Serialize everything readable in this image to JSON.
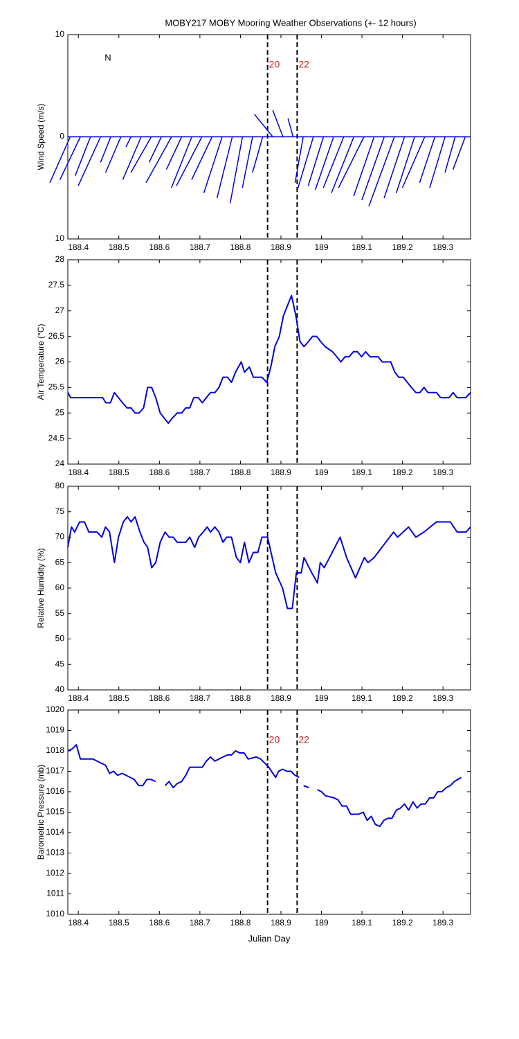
{
  "chart_data": [
    {
      "type": "stick",
      "title": "MOBY217 MOBY Mooring Weather Observations (+- 12 hours)",
      "ylabel": "Wind Speed (m/s)",
      "north_label": "N",
      "color": "#0000dd",
      "xlim": [
        188.374,
        189.368
      ],
      "xticks": [
        188.4,
        188.5,
        188.6,
        188.7,
        188.8,
        188.9,
        189,
        189.1,
        189.2,
        189.3
      ],
      "ylim": [
        -10,
        10
      ],
      "yticks": [
        {
          "value": -10,
          "label": "10"
        },
        0,
        10
      ],
      "vlines": [
        {
          "value": 188.867,
          "label": "20"
        },
        {
          "value": 188.94,
          "label": "22"
        }
      ],
      "x": [
        188.38,
        188.405,
        188.43,
        188.455,
        188.48,
        188.505,
        188.53,
        188.555,
        188.58,
        188.605,
        188.63,
        188.655,
        188.68,
        188.705,
        188.73,
        188.755,
        188.78,
        188.805,
        188.83,
        188.855,
        188.88,
        188.905,
        188.93,
        188.955,
        188.98,
        189.005,
        189.03,
        189.055,
        189.08,
        189.105,
        189.13,
        189.155,
        189.18,
        189.205,
        189.23,
        189.255,
        189.28,
        189.305,
        189.33,
        189.355
      ],
      "u": [
        -2,
        -2,
        -1.5,
        -2.2,
        -1,
        -1.5,
        -0.5,
        -1.8,
        -2,
        -1.2,
        -2.5,
        -1.5,
        -2,
        -2.5,
        -2,
        -1.8,
        -1.5,
        -1.2,
        -1,
        -1,
        -1.8,
        -1,
        -0.5,
        -0.8,
        -1.5,
        -1.5,
        -1.8,
        -2,
        -2.2,
        -2.5,
        -2,
        -2.2,
        -2.5,
        -2,
        -1.8,
        -2.2,
        -1.5,
        -1.5,
        -1,
        -1.2
      ],
      "v": [
        -4.5,
        -4.2,
        -3.8,
        -4.8,
        -2.5,
        -3.5,
        -1,
        -4.2,
        -3.5,
        -2.5,
        -4.5,
        -3.2,
        -5,
        -4.8,
        -4.2,
        -5.5,
        -6,
        -6.5,
        -5,
        -3.5,
        2.2,
        2.6,
        1.8,
        -4.5,
        -5,
        -4.8,
        -5.2,
        -5,
        -5.5,
        -5,
        -5.8,
        -6.2,
        -6.8,
        -6,
        -5.5,
        -5,
        -4.5,
        -5,
        -3.5,
        -3.2
      ]
    },
    {
      "type": "line",
      "ylabel": "Air Temperature (°C)",
      "color": "#0000dd",
      "xlim": [
        188.374,
        189.368
      ],
      "xticks": [
        188.4,
        188.5,
        188.6,
        188.7,
        188.8,
        188.9,
        189,
        189.1,
        189.2,
        189.3
      ],
      "ylim": [
        24,
        28
      ],
      "yticks": [
        24,
        24.5,
        25,
        25.5,
        26,
        26.5,
        27,
        27.5,
        28
      ],
      "vlines": [
        188.867,
        188.94
      ],
      "x": [
        188.374,
        188.381,
        188.46,
        188.468,
        188.479,
        188.489,
        188.499,
        188.509,
        188.52,
        188.53,
        188.54,
        188.55,
        188.561,
        188.571,
        188.581,
        188.591,
        188.602,
        188.612,
        188.622,
        188.632,
        188.644,
        188.655,
        188.665,
        188.675,
        188.685,
        188.696,
        188.706,
        188.716,
        188.726,
        188.737,
        188.747,
        188.757,
        188.768,
        188.778,
        188.788,
        188.802,
        188.81,
        188.822,
        188.832,
        188.853,
        188.865,
        188.875,
        188.885,
        188.896,
        188.906,
        188.916,
        188.926,
        188.937,
        188.947,
        188.957,
        188.968,
        188.978,
        188.988,
        188.998,
        189.009,
        189.027,
        189.038,
        189.048,
        189.058,
        189.068,
        189.079,
        189.089,
        189.099,
        189.109,
        189.12,
        189.14,
        189.15,
        189.171,
        189.181,
        189.191,
        189.202,
        189.212,
        189.222,
        189.233,
        189.243,
        189.253,
        189.263,
        189.284,
        189.294,
        189.315,
        189.325,
        189.335,
        189.356,
        189.368
      ],
      "values": [
        25.4,
        25.3,
        25.3,
        25.2,
        25.2,
        25.4,
        25.3,
        25.2,
        25.1,
        25.1,
        25.0,
        25.0,
        25.1,
        25.5,
        25.5,
        25.3,
        25.0,
        24.9,
        24.8,
        24.9,
        25.0,
        25.0,
        25.1,
        25.1,
        25.3,
        25.3,
        25.2,
        25.3,
        25.4,
        25.4,
        25.5,
        25.7,
        25.7,
        25.6,
        25.8,
        26.0,
        25.8,
        25.9,
        25.7,
        25.7,
        25.6,
        25.9,
        26.3,
        26.5,
        26.9,
        27.1,
        27.3,
        26.9,
        26.4,
        26.3,
        26.4,
        26.5,
        26.5,
        26.4,
        26.3,
        26.2,
        26.1,
        26.0,
        26.1,
        26.1,
        26.2,
        26.2,
        26.1,
        26.2,
        26.1,
        26.1,
        26.0,
        26.0,
        25.8,
        25.7,
        25.7,
        25.6,
        25.5,
        25.4,
        25.4,
        25.5,
        25.4,
        25.4,
        25.3,
        25.3,
        25.4,
        25.3,
        25.3,
        25.4
      ]
    },
    {
      "type": "line",
      "ylabel": "Relative Humidity (%)",
      "color": "#0000dd",
      "xlim": [
        188.374,
        189.368
      ],
      "xticks": [
        188.4,
        188.5,
        188.6,
        188.7,
        188.8,
        188.9,
        189,
        189.1,
        189.2,
        189.3
      ],
      "ylim": [
        40,
        80
      ],
      "yticks": [
        40,
        45,
        50,
        55,
        60,
        65,
        70,
        75,
        80
      ],
      "vlines": [
        188.867,
        188.94
      ],
      "x": [
        188.374,
        188.383,
        188.391,
        188.403,
        188.415,
        188.426,
        188.446,
        188.458,
        188.467,
        188.477,
        188.489,
        188.499,
        188.511,
        188.521,
        188.53,
        188.54,
        188.552,
        188.562,
        188.571,
        188.581,
        188.591,
        188.602,
        188.614,
        188.624,
        188.634,
        188.644,
        188.665,
        188.675,
        188.687,
        188.697,
        188.708,
        188.718,
        188.726,
        188.737,
        188.747,
        188.757,
        188.766,
        188.778,
        188.79,
        188.8,
        188.81,
        188.821,
        188.832,
        188.843,
        188.853,
        188.867,
        188.887,
        188.904,
        188.916,
        188.928,
        188.938,
        188.95,
        188.957,
        188.976,
        188.99,
        188.997,
        189.007,
        189.046,
        189.062,
        189.084,
        189.106,
        189.115,
        189.13,
        189.178,
        189.188,
        189.215,
        189.233,
        189.253,
        189.284,
        189.318,
        189.335,
        189.357,
        189.368
      ],
      "values": [
        68,
        72,
        71,
        73,
        73,
        71,
        71,
        70,
        72,
        71,
        65,
        70,
        73,
        74,
        73,
        74,
        71,
        69,
        68,
        64,
        65,
        69,
        71,
        70,
        70,
        69,
        69,
        70,
        68,
        70,
        71,
        72,
        71,
        72,
        71,
        69,
        70,
        70,
        66,
        65,
        69,
        65,
        67,
        67,
        70,
        70,
        63,
        60,
        56,
        56,
        63,
        63,
        66,
        63,
        61,
        65,
        64,
        70,
        66,
        62,
        66,
        65,
        66,
        71,
        70,
        72,
        70,
        71,
        73,
        73,
        71,
        71,
        72
      ]
    },
    {
      "type": "line",
      "ylabel": "Barometric Pressure (mb)",
      "xlabel": "Julian Day",
      "color": "#0000dd",
      "xlim": [
        188.374,
        189.368
      ],
      "xticks": [
        188.4,
        188.5,
        188.6,
        188.7,
        188.8,
        188.9,
        189,
        189.1,
        189.2,
        189.3
      ],
      "ylim": [
        1010,
        1020
      ],
      "yticks": [
        1010,
        1011,
        1012,
        1013,
        1014,
        1015,
        1016,
        1017,
        1018,
        1019,
        1020
      ],
      "vlines": [
        {
          "value": 188.867,
          "label": "20"
        },
        {
          "value": 188.94,
          "label": "22"
        }
      ],
      "x": [
        188.374,
        188.385,
        188.395,
        188.405,
        188.436,
        188.446,
        188.456,
        188.467,
        188.477,
        188.487,
        188.497,
        188.508,
        188.518,
        188.528,
        188.538,
        188.549,
        188.559,
        188.569,
        188.579,
        188.591,
        188.602,
        188.614,
        188.624,
        188.634,
        188.644,
        188.655,
        188.665,
        188.675,
        188.706,
        188.716,
        188.726,
        188.737,
        188.747,
        188.757,
        188.768,
        188.778,
        188.788,
        188.798,
        188.809,
        188.819,
        188.839,
        188.85,
        188.87,
        188.88,
        188.887,
        188.894,
        188.904,
        188.915,
        188.925,
        188.935,
        188.945,
        188.95,
        188.956,
        188.969,
        188.98,
        188.99,
        189.0,
        189.01,
        189.031,
        189.041,
        189.051,
        189.062,
        189.072,
        189.092,
        189.103,
        189.113,
        189.123,
        189.133,
        189.144,
        189.154,
        189.164,
        189.174,
        189.185,
        189.195,
        189.205,
        189.215,
        189.226,
        189.236,
        189.246,
        189.256,
        189.267,
        189.277,
        189.287,
        189.297,
        189.308,
        189.318,
        189.328,
        189.345
      ],
      "values": [
        1018.0,
        1018.1,
        1018.3,
        1017.6,
        1017.6,
        1017.5,
        1017.4,
        1017.3,
        1016.9,
        1017.0,
        1016.8,
        1016.9,
        1016.8,
        1016.7,
        1016.6,
        1016.3,
        1016.3,
        1016.6,
        1016.6,
        1016.5,
        null,
        1016.3,
        1016.5,
        1016.2,
        1016.4,
        1016.5,
        1016.8,
        1017.2,
        1017.2,
        1017.5,
        1017.7,
        1017.5,
        1017.6,
        1017.7,
        1017.8,
        1017.8,
        1018.0,
        1017.9,
        1017.9,
        1017.6,
        1017.7,
        1017.6,
        1017.2,
        1016.9,
        1016.7,
        1017.0,
        1017.1,
        1017.0,
        1017.0,
        1016.8,
        1016.7,
        null,
        1016.3,
        1016.2,
        null,
        1016.1,
        1016.0,
        1015.8,
        1015.7,
        1015.6,
        1015.3,
        1015.3,
        1014.9,
        1014.9,
        1015.0,
        1014.6,
        1014.8,
        1014.4,
        1014.3,
        1014.6,
        1014.7,
        1014.7,
        1015.1,
        1015.2,
        1015.4,
        1015.1,
        1015.5,
        1015.2,
        1015.4,
        1015.4,
        1015.7,
        1015.7,
        1016.0,
        1016.0,
        1016.2,
        1016.3,
        1016.5,
        1016.7
      ]
    }
  ]
}
